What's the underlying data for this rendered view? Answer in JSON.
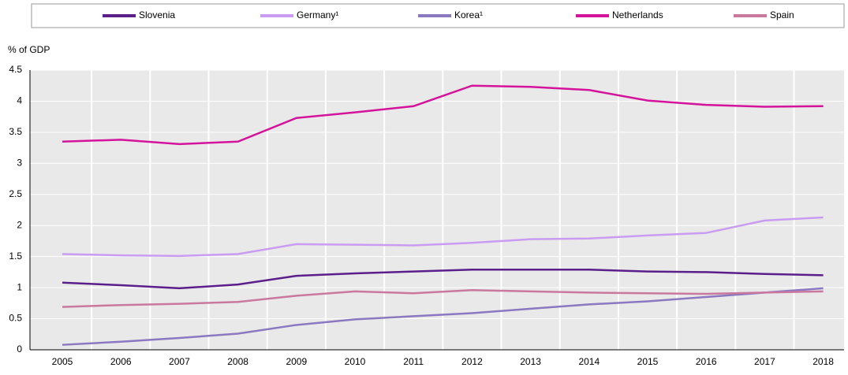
{
  "chart_data": {
    "type": "line",
    "y_label": "% of GDP",
    "categories": [
      "2005",
      "2006",
      "2007",
      "2008",
      "2009",
      "2010",
      "2011",
      "2012",
      "2013",
      "2014",
      "2015",
      "2016",
      "2017",
      "2018"
    ],
    "series": [
      {
        "name": "Slovenia",
        "color": "#5b1f8a",
        "values": [
          1.08,
          1.04,
          0.99,
          1.05,
          1.19,
          1.23,
          1.26,
          1.29,
          1.29,
          1.29,
          1.26,
          1.25,
          1.22,
          1.2
        ]
      },
      {
        "name": "Germany¹",
        "color": "#c99cf2",
        "values": [
          1.54,
          1.52,
          1.51,
          1.54,
          1.7,
          1.69,
          1.68,
          1.72,
          1.78,
          1.79,
          1.84,
          1.88,
          2.08,
          2.13
        ]
      },
      {
        "name": "Korea¹",
        "color": "#8a78c0",
        "values": [
          0.08,
          0.13,
          0.19,
          0.26,
          0.4,
          0.49,
          0.54,
          0.59,
          0.66,
          0.73,
          0.78,
          0.85,
          0.92,
          0.99
        ]
      },
      {
        "name": "Netherlands",
        "color": "#d4139b",
        "values": [
          3.35,
          3.38,
          3.31,
          3.35,
          3.73,
          3.82,
          3.92,
          4.25,
          4.23,
          4.18,
          4.01,
          3.94,
          3.91,
          3.92
        ]
      },
      {
        "name": "Spain",
        "color": "#c9789e",
        "values": [
          0.69,
          0.72,
          0.74,
          0.77,
          0.87,
          0.94,
          0.91,
          0.96,
          0.94,
          0.92,
          0.91,
          0.9,
          0.92,
          0.94
        ]
      }
    ],
    "ylim": [
      0,
      4.5
    ],
    "yticks": [
      0,
      0.5,
      1,
      1.5,
      2,
      2.5,
      3,
      3.5,
      4,
      4.5
    ],
    "grid": true
  }
}
